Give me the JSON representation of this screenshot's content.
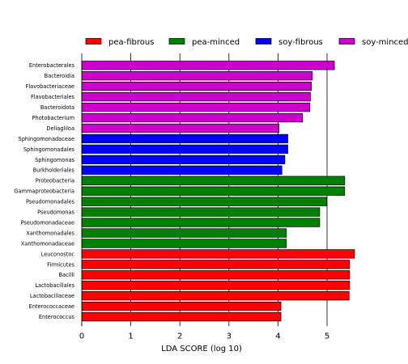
{
  "chart_data": {
    "type": "bar",
    "orientation": "horizontal",
    "xlabel": "LDA SCORE (log 10)",
    "xlim": [
      0,
      5.9
    ],
    "xticks": [
      0,
      1,
      2,
      3,
      4,
      5
    ],
    "grid": "vertical lines at x ticks",
    "legend_position": "top",
    "legend": [
      {
        "name": "pea-fibrous",
        "color": "#ff0000"
      },
      {
        "name": "pea-minced",
        "color": "#008000"
      },
      {
        "name": "soy-fibrous",
        "color": "#0000ff"
      },
      {
        "name": "soy-minced",
        "color": "#cc00cc"
      }
    ],
    "bars": [
      {
        "label": "Enterobacterales",
        "value": 5.15,
        "group": "soy-minced"
      },
      {
        "label": "Bacteroidia",
        "value": 4.7,
        "group": "soy-minced"
      },
      {
        "label": "Flavobacteriaceae",
        "value": 4.68,
        "group": "soy-minced"
      },
      {
        "label": "Flavobacteriales",
        "value": 4.66,
        "group": "soy-minced"
      },
      {
        "label": "Bacteroidota",
        "value": 4.65,
        "group": "soy-minced"
      },
      {
        "label": "Photobacterium",
        "value": 4.5,
        "group": "soy-minced"
      },
      {
        "label": "Deliagliloa",
        "value": 4.02,
        "group": "soy-minced"
      },
      {
        "label": "Sphingomonadaceae",
        "value": 4.2,
        "group": "soy-fibrous"
      },
      {
        "label": "Sphingomonadales",
        "value": 4.2,
        "group": "soy-fibrous"
      },
      {
        "label": "Sphingomonas",
        "value": 4.14,
        "group": "soy-fibrous"
      },
      {
        "label": "Burkholderiales",
        "value": 4.08,
        "group": "soy-fibrous"
      },
      {
        "label": "Proteobacteria",
        "value": 5.36,
        "group": "pea-minced"
      },
      {
        "label": "Gammaproteobacteria",
        "value": 5.36,
        "group": "pea-minced"
      },
      {
        "label": "Pseudomonadales",
        "value": 4.99,
        "group": "pea-minced"
      },
      {
        "label": "Pseudomonas",
        "value": 4.85,
        "group": "pea-minced"
      },
      {
        "label": "Pseudomonadaceae",
        "value": 4.85,
        "group": "pea-minced"
      },
      {
        "label": "Xanthomonadales",
        "value": 4.17,
        "group": "pea-minced"
      },
      {
        "label": "Xanthomonadaceae",
        "value": 4.17,
        "group": "pea-minced"
      },
      {
        "label": "Leuconostoc",
        "value": 5.56,
        "group": "pea-fibrous"
      },
      {
        "label": "Firmicutes",
        "value": 5.46,
        "group": "pea-fibrous"
      },
      {
        "label": "Bacilli",
        "value": 5.46,
        "group": "pea-fibrous"
      },
      {
        "label": "Lactobacillales",
        "value": 5.46,
        "group": "pea-fibrous"
      },
      {
        "label": "Lactobacillaceae",
        "value": 5.45,
        "group": "pea-fibrous"
      },
      {
        "label": "Enterococcaceae",
        "value": 4.06,
        "group": "pea-fibrous"
      },
      {
        "label": "Enterococcus",
        "value": 4.06,
        "group": "pea-fibrous"
      }
    ]
  }
}
